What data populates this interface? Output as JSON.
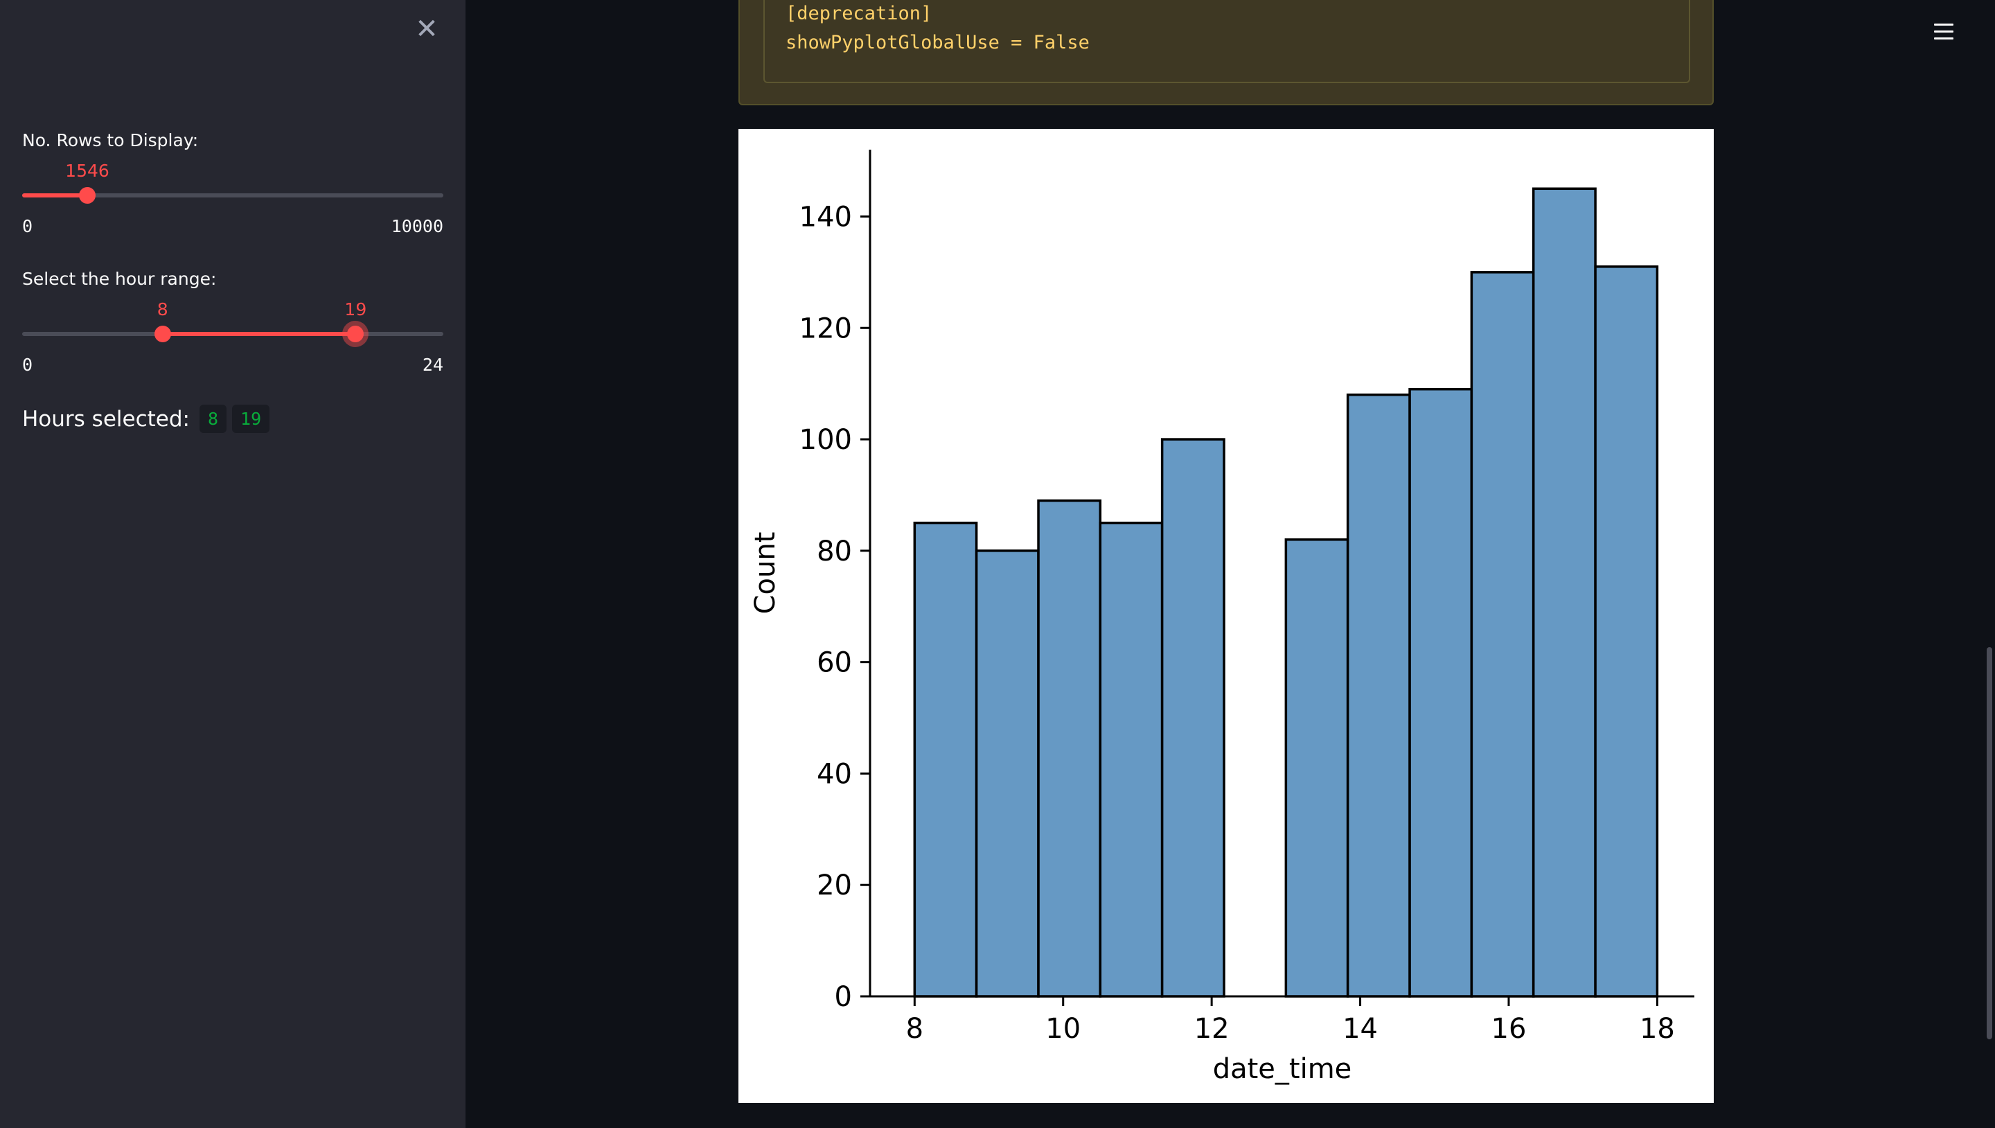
{
  "sidebar": {
    "rows_slider": {
      "label": "No. Rows to Display:",
      "value": 1546,
      "value_text": "1546",
      "min": 0,
      "max": 10000,
      "min_label": "0",
      "max_label": "10000"
    },
    "hour_slider": {
      "label": "Select the hour range:",
      "low": 8,
      "high": 19,
      "low_text": "8",
      "high_text": "19",
      "min": 0,
      "max": 24,
      "min_label": "0",
      "max_label": "24"
    },
    "hours_selected": {
      "label": "Hours selected:",
      "low": "8",
      "high": "19"
    }
  },
  "warning": {
    "line1": "[deprecation]",
    "line2": "showPyplotGlobalUse = False"
  },
  "chart_data": {
    "type": "bar",
    "bins": [
      [
        8.0,
        8.833
      ],
      [
        8.833,
        9.667
      ],
      [
        9.667,
        10.5
      ],
      [
        10.5,
        11.333
      ],
      [
        11.333,
        12.167
      ],
      [
        12.167,
        13.0
      ],
      [
        13.0,
        13.833
      ],
      [
        13.833,
        14.667
      ],
      [
        14.667,
        15.5
      ],
      [
        15.5,
        16.333
      ],
      [
        16.333,
        17.167
      ],
      [
        17.167,
        18.0
      ]
    ],
    "values": [
      85,
      80,
      89,
      85,
      100,
      0,
      82,
      108,
      109,
      130,
      145,
      131
    ],
    "xlabel": "date_time",
    "ylabel": "Count",
    "xlim": [
      7.4,
      18.5
    ],
    "ylim": [
      0,
      152
    ],
    "xticks": [
      8,
      10,
      12,
      14,
      16,
      18
    ],
    "yticks": [
      0,
      20,
      40,
      60,
      80,
      100,
      120,
      140
    ],
    "bar_color": "#6699c4",
    "edge_color": "#000000",
    "grid": false
  }
}
